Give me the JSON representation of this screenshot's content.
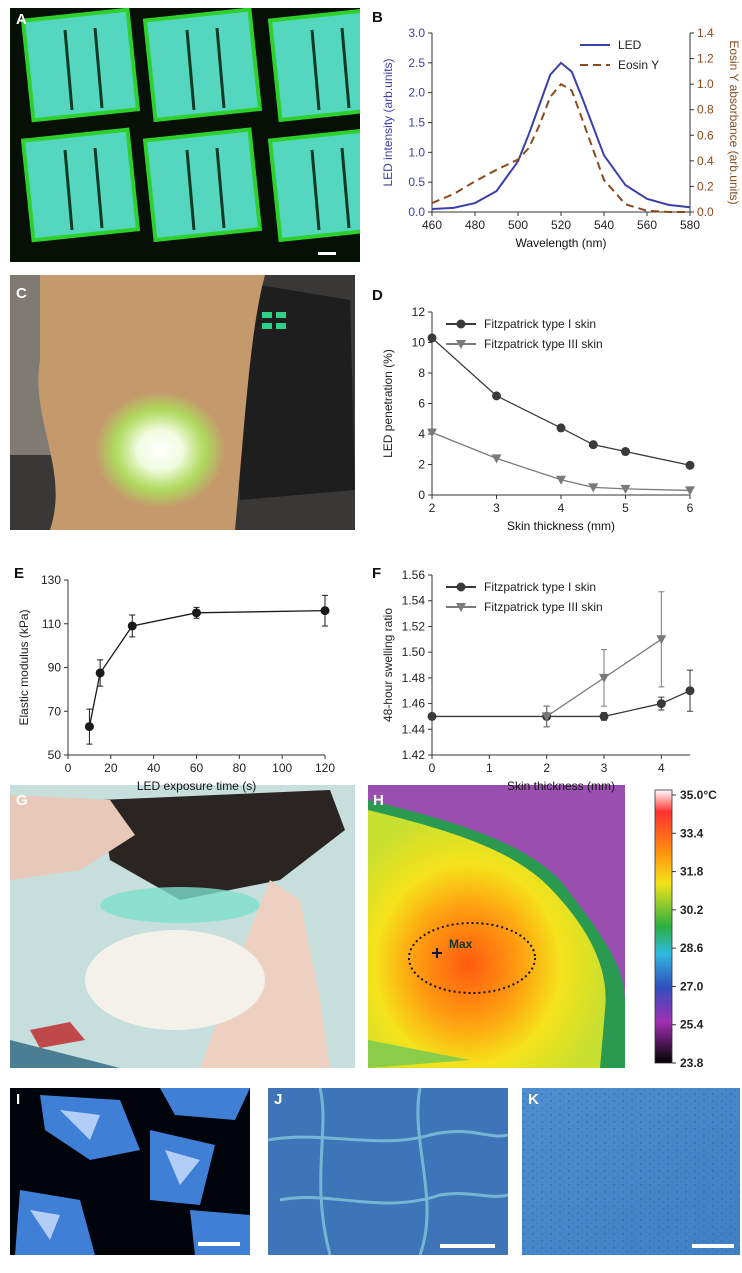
{
  "images": [
    {
      "label": "A"
    },
    {
      "label": "C"
    },
    {
      "label": "G"
    },
    {
      "label": "H"
    },
    {
      "label": "I"
    },
    {
      "label": "J"
    },
    {
      "label": "K"
    }
  ],
  "thermal": {
    "marker_label": "Max",
    "range": [
      23.8,
      35.0
    ],
    "colorbar_ticks": [
      {
        "value": 35.0,
        "label": "35.0°C"
      },
      33.4,
      31.8,
      30.2,
      28.6,
      {
        "value": 27.0,
        "label": "27.0"
      },
      25.4,
      23.8
    ]
  },
  "chart_data": [
    {
      "type": "line",
      "label": "B",
      "xlabel": "Wavelength (nm)",
      "ylabel": "LED intensity (arb.units)",
      "y2label": "Eosin Y absorbance (arb.units)",
      "x": [
        460,
        470,
        480,
        490,
        500,
        505,
        510,
        515,
        520,
        525,
        530,
        540,
        550,
        560,
        570,
        580
      ],
      "series": [
        {
          "name": "LED",
          "color": "#3b3fa8",
          "linestyle": "solid",
          "values": [
            0.05,
            0.07,
            0.15,
            0.35,
            0.85,
            1.3,
            1.8,
            2.3,
            2.5,
            2.35,
            1.9,
            0.95,
            0.45,
            0.22,
            0.12,
            0.08
          ]
        },
        {
          "name": "Eosin Y",
          "color": "#8b4a1e",
          "linestyle": "dashed",
          "axis": "y2",
          "values": [
            0.07,
            0.14,
            0.24,
            0.33,
            0.41,
            0.5,
            0.68,
            0.9,
            1.0,
            0.95,
            0.72,
            0.25,
            0.06,
            0.01,
            0.0,
            0.0
          ]
        }
      ],
      "xlim": [
        460,
        580
      ],
      "xticks": [
        460,
        480,
        500,
        520,
        540,
        560,
        580
      ],
      "ylim": [
        0,
        3
      ],
      "yticks": [
        {
          "value": 0,
          "label": "0.0"
        },
        0.5,
        {
          "value": 1,
          "label": "1.0"
        },
        1.5,
        {
          "value": 2,
          "label": "2.0"
        },
        2.5,
        {
          "value": 3,
          "label": "3.0"
        }
      ],
      "y2lim": [
        0,
        1.4
      ],
      "y2ticks": [
        {
          "value": 0,
          "label": "0.0"
        },
        0.2,
        0.4,
        0.6,
        0.8,
        {
          "value": 1,
          "label": "1.0"
        },
        1.2,
        1.4
      ],
      "legend": "upper right"
    },
    {
      "type": "line",
      "label": "D",
      "xlabel": "Skin thickness (mm)",
      "ylabel": "LED penetration (%)",
      "x": [
        2,
        3,
        4,
        4.5,
        5,
        6
      ],
      "series": [
        {
          "name": "Fitzpatrick type I skin",
          "color": "#3a3a3a",
          "marker": "circle",
          "values": [
            10.3,
            6.5,
            4.4,
            3.3,
            2.85,
            1.95
          ]
        },
        {
          "name": "Fitzpatrick type III skin",
          "color": "#7a7a7a",
          "marker": "triangle-down",
          "values": [
            4.1,
            2.4,
            1.0,
            0.5,
            0.4,
            0.3
          ]
        }
      ],
      "xlim": [
        2,
        6
      ],
      "xticks": [
        2,
        3,
        4,
        5,
        6
      ],
      "ylim": [
        0,
        12
      ],
      "yticks": [
        0,
        2,
        4,
        6,
        8,
        10,
        12
      ],
      "legend": "upper left"
    },
    {
      "type": "line",
      "label": "E",
      "xlabel": "LED exposure time (s)",
      "ylabel": "Elastic modulus (kPa)",
      "x": [
        10,
        15,
        30,
        60,
        120
      ],
      "series": [
        {
          "color": "#1a1a1a",
          "marker": "circle",
          "values": [
            63,
            87.5,
            109,
            115,
            116
          ],
          "errors": [
            8,
            6,
            5,
            2.5,
            7
          ]
        }
      ],
      "xlim": [
        0,
        120
      ],
      "xticks": [
        0,
        20,
        40,
        60,
        80,
        100,
        120
      ],
      "ylim": [
        50,
        130
      ],
      "yticks": [
        50,
        70,
        90,
        110,
        130
      ]
    },
    {
      "type": "line",
      "label": "F",
      "xlabel": "Skin thickness (mm)",
      "ylabel": "48-hour swelling ratio",
      "series": [
        {
          "name": "Fitzpatrick type I skin",
          "color": "#3a3a3a",
          "marker": "circle",
          "x": [
            0,
            2,
            3,
            4,
            4.5
          ],
          "values": [
            1.45,
            1.45,
            1.45,
            1.46,
            1.47
          ],
          "errors": [
            0,
            0.008,
            0.003,
            0.005,
            0.016
          ]
        },
        {
          "name": "Fitzpatrick type III skin",
          "color": "#7a7a7a",
          "marker": "triangle-down",
          "x": [
            2,
            3,
            4
          ],
          "values": [
            1.45,
            1.48,
            1.51
          ],
          "errors": [
            0.008,
            0.022,
            0.037
          ]
        }
      ],
      "xlim": [
        0,
        4.5
      ],
      "xticks": [
        0,
        1,
        2,
        3,
        4
      ],
      "ylim": [
        1.42,
        1.56
      ],
      "yticks": [
        1.42,
        1.44,
        1.46,
        1.48,
        {
          "value": 1.5,
          "label": "1.50"
        },
        1.52,
        1.54,
        1.56
      ],
      "legend": "upper left"
    }
  ]
}
